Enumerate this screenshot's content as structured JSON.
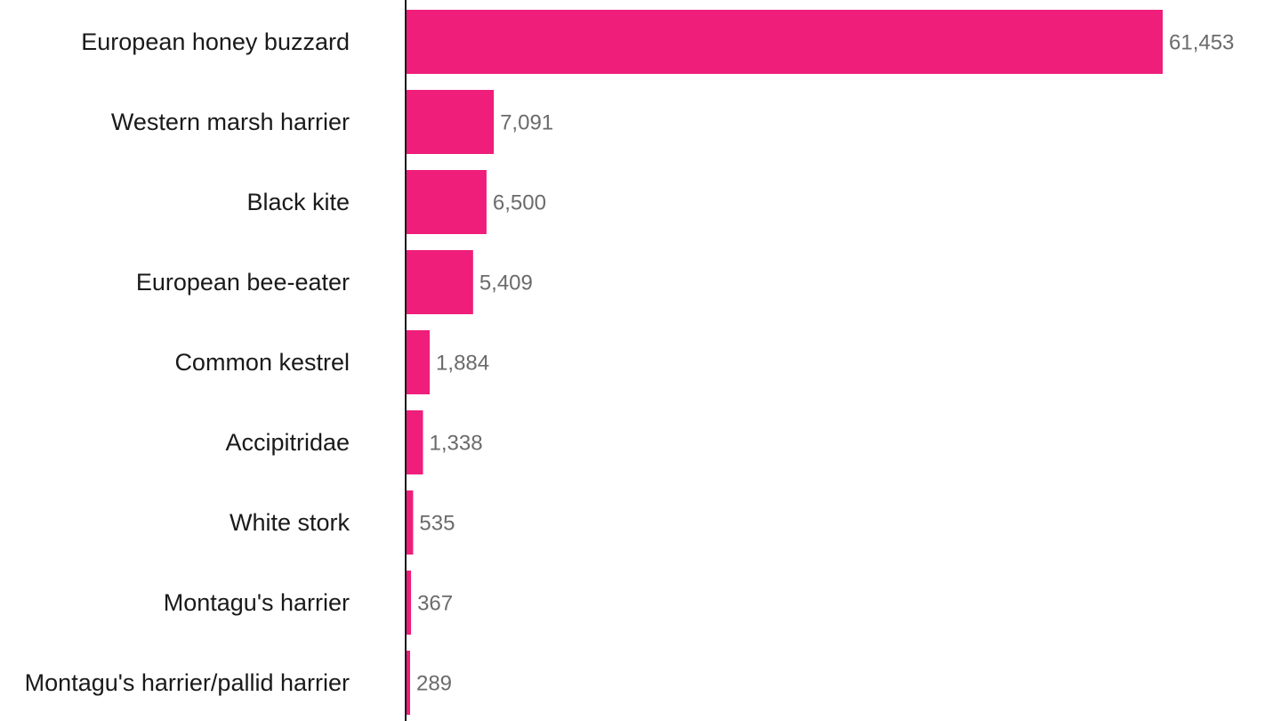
{
  "chart_data": {
    "type": "bar",
    "orientation": "horizontal",
    "categories": [
      "European honey buzzard",
      "Western marsh harrier",
      "Black kite",
      "European bee-eater",
      "Common kestrel",
      "Accipitridae",
      "White stork",
      "Montagu's harrier",
      "Montagu's harrier/pallid harrier"
    ],
    "values": [
      61453,
      7091,
      6500,
      5409,
      1884,
      1338,
      535,
      367,
      289
    ],
    "value_labels": [
      "61,453",
      "7,091",
      "6,500",
      "5,409",
      "1,884",
      "1,338",
      "535",
      "367",
      "289"
    ],
    "title": "",
    "xlabel": "",
    "ylabel": "",
    "xlim": [
      0,
      61453
    ],
    "grid": false,
    "legend": "none",
    "colors": {
      "bar": "#ee1e7a",
      "axis": "#1a1a1a",
      "category_text": "#1a1a1a",
      "value_text": "#6b6b6b"
    }
  }
}
